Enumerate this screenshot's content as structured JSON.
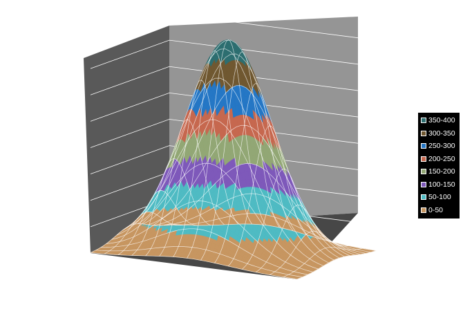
{
  "chart_data": {
    "type": "surface",
    "title": "",
    "z_range": [
      0,
      400
    ],
    "z_major_unit": 50,
    "grid": true,
    "legend_position": "right",
    "bands": [
      {
        "label": "350-400",
        "from": 350,
        "to": 400,
        "color": "#2d6e70"
      },
      {
        "label": "300-350",
        "from": 300,
        "to": 350,
        "color": "#705831"
      },
      {
        "label": "250-300",
        "from": 250,
        "to": 300,
        "color": "#2577c5"
      },
      {
        "label": "200-250",
        "from": 200,
        "to": 250,
        "color": "#c6684f"
      },
      {
        "label": "150-200",
        "from": 150,
        "to": 200,
        "color": "#92a775"
      },
      {
        "label": "100-150",
        "from": 100,
        "to": 150,
        "color": "#7e59ba"
      },
      {
        "label": "50-100",
        "from": 50,
        "to": 100,
        "color": "#4fbbc3"
      },
      {
        "label": "0-50",
        "from": 0,
        "to": 50,
        "color": "#c79661"
      }
    ],
    "surface": {
      "shape": "gaussian peak",
      "peak_value": 400,
      "base_value": 0,
      "grid_rows": 15,
      "grid_cols": 15
    }
  }
}
